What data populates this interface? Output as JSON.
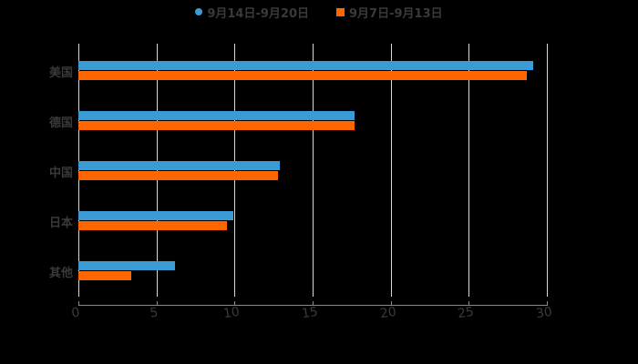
{
  "legend": {
    "series_a": "9月14日-9月20日",
    "series_b": "9月7日-9月13日"
  },
  "colors": {
    "series_a": "#3a9bd5",
    "series_b": "#ff6600"
  },
  "chart_data": {
    "type": "bar",
    "orientation": "horizontal",
    "title": "",
    "categories": [
      "美国",
      "德国",
      "中国",
      "日本",
      "其他"
    ],
    "series": [
      {
        "name": "9月14日-9月20日",
        "color": "#3a9bd5",
        "values": [
          29.1,
          17.7,
          12.9,
          9.9,
          6.2
        ]
      },
      {
        "name": "9月7日-9月13日",
        "color": "#ff6600",
        "values": [
          28.7,
          17.7,
          12.8,
          9.5,
          3.4
        ]
      }
    ],
    "xlabel": "",
    "ylabel": "",
    "xlim": [
      0,
      30
    ],
    "xticks": [
      "0",
      "5",
      "10",
      "15",
      "20",
      "25",
      "30"
    ],
    "grid": true,
    "legend_position": "top"
  }
}
